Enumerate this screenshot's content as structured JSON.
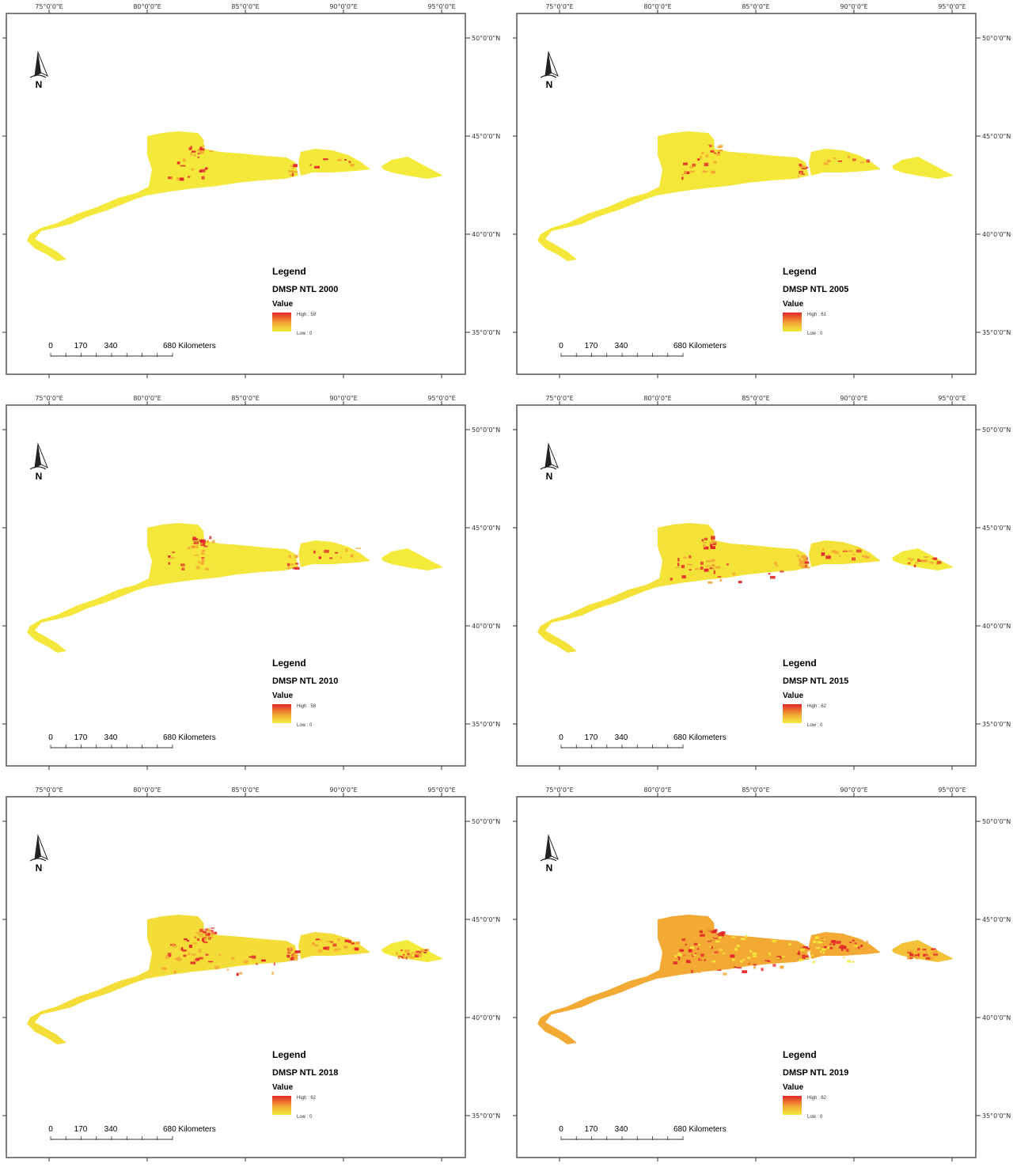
{
  "colors": {
    "low": "#f4ea3a",
    "mid": "#f3a734",
    "high": "#e2262a",
    "frame": "#555555"
  },
  "axis_labels": {
    "lon": [
      "75°0'0\"E",
      "80°0'0\"E",
      "85°0'0\"E",
      "90°0'0\"E",
      "95°0'0\"E"
    ],
    "lat": [
      "50°0'0\"N",
      "45°0'0\"N",
      "40°0'0\"N",
      "35°0'0\"N"
    ]
  },
  "north_label": "N",
  "legend_heading": "Legend",
  "legend_value_label": "Value",
  "scale_bar": {
    "labels": [
      "0",
      "170",
      "340",
      "680 Kilometers"
    ]
  },
  "maps": [
    {
      "title": "DMSP NTL 2000",
      "high": "High : 59",
      "low": "Low : 0",
      "level": 0.1
    },
    {
      "title": "DMSP NTL 2005",
      "high": "High : 61",
      "low": "Low : 0",
      "level": 0.12
    },
    {
      "title": "DMSP NTL 2010",
      "high": "High : 58",
      "low": "Low : 0",
      "level": 0.16
    },
    {
      "title": "DMSP NTL 2015",
      "high": "High : 62",
      "low": "Low : 0",
      "level": 0.35
    },
    {
      "title": "DMSP NTL 2018",
      "high": "High : 62",
      "low": "Low : 0",
      "level": 0.55
    },
    {
      "title": "DMSP NTL 2019",
      "high": "High : 62",
      "low": "Low : 0",
      "level": 0.85
    }
  ]
}
